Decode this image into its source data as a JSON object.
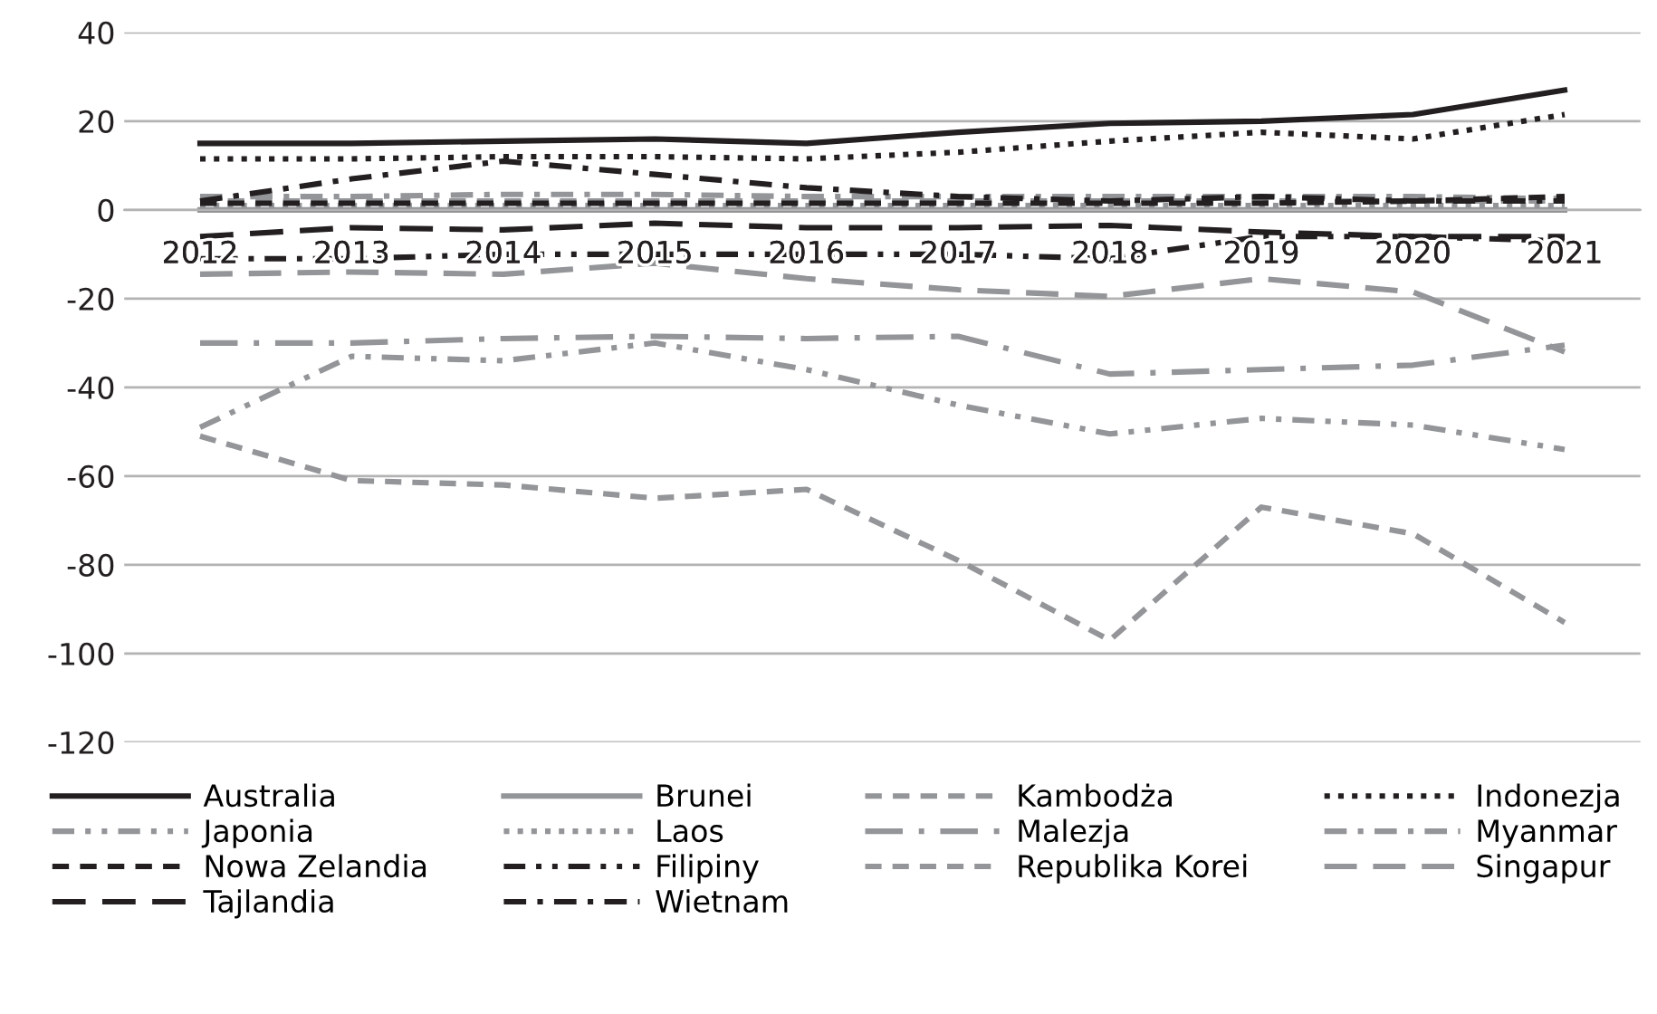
{
  "chart_data": {
    "type": "line",
    "categories": [
      "2012",
      "2013",
      "2014",
      "2015",
      "2016",
      "2017",
      "2018",
      "2019",
      "2020",
      "2021"
    ],
    "ylim": [
      -120,
      40
    ],
    "yticks": [
      -120,
      -100,
      -80,
      -60,
      -40,
      -20,
      0,
      20,
      40
    ],
    "grid": "y",
    "legend": "bottom",
    "marker": "none",
    "series": [
      {
        "name": "Australia",
        "color": "#231f20",
        "line_style": "solid",
        "values": [
          15,
          15,
          15.5,
          16,
          15,
          17.5,
          19.5,
          20,
          21.5,
          27
        ]
      },
      {
        "name": "Brunei",
        "color": "#939598",
        "line_style": "solid",
        "values": [
          0,
          0,
          0,
          0,
          0,
          0,
          0,
          0,
          0,
          0
        ]
      },
      {
        "name": "Kambodża",
        "color": "#939598",
        "line_style": "dashed",
        "values": [
          2,
          2,
          2,
          2,
          2,
          2,
          2,
          2,
          2,
          2
        ]
      },
      {
        "name": "Indonezja",
        "color": "#231f20",
        "line_style": "dotted",
        "values": [
          11.5,
          11.5,
          12,
          12,
          11.5,
          13,
          15.5,
          17.5,
          16,
          21.5
        ]
      },
      {
        "name": "Japonia",
        "color": "#939598",
        "line_style": "longdashdotdot",
        "values": [
          -49,
          -33,
          -34,
          -30,
          -36,
          -44,
          -50.5,
          -47,
          -48.5,
          -54
        ]
      },
      {
        "name": "Laos",
        "color": "#939598",
        "line_style": "dotted",
        "values": [
          1,
          1,
          1,
          1,
          1,
          1,
          1,
          1,
          1,
          1
        ]
      },
      {
        "name": "Malezja",
        "color": "#939598",
        "line_style": "longdashdot",
        "values": [
          -30,
          -30,
          -29,
          -28.5,
          -29,
          -28.5,
          -37,
          -36,
          -35,
          -30.5
        ]
      },
      {
        "name": "Myanmar",
        "color": "#939598",
        "line_style": "dashdot",
        "values": [
          3,
          3,
          3.5,
          3.5,
          3,
          3,
          3,
          3,
          3,
          2.5
        ]
      },
      {
        "name": "Nowa Zelandia",
        "color": "#231f20",
        "line_style": "dashed",
        "values": [
          1.5,
          1.5,
          1.5,
          1.5,
          1.5,
          1.5,
          1.5,
          1.5,
          2,
          3
        ]
      },
      {
        "name": "Filipiny",
        "color": "#231f20",
        "line_style": "longdashdotdot",
        "values": [
          -11,
          -11,
          -10,
          -10,
          -10,
          -10,
          -11,
          -6,
          -6,
          -7
        ]
      },
      {
        "name": "Republika Korei",
        "color": "#939598",
        "line_style": "dashed",
        "values": [
          -51,
          -61,
          -62,
          -65,
          -63,
          -79,
          -97,
          -67,
          -73,
          -93
        ]
      },
      {
        "name": "Singapur",
        "color": "#939598",
        "line_style": "longdash",
        "values": [
          -14.5,
          -14,
          -14.5,
          -12,
          -15.5,
          -18,
          -19.5,
          -15.5,
          -18.5,
          -32
        ]
      },
      {
        "name": "Tajlandia",
        "color": "#231f20",
        "line_style": "longdash",
        "values": [
          -6,
          -4,
          -4.5,
          -3,
          -4,
          -4,
          -3.5,
          -5,
          -6,
          -6
        ]
      },
      {
        "name": "Wietnam",
        "color": "#231f20",
        "line_style": "dashdot",
        "values": [
          2,
          7,
          11,
          8,
          5,
          3,
          2,
          3,
          2,
          2
        ]
      }
    ]
  }
}
